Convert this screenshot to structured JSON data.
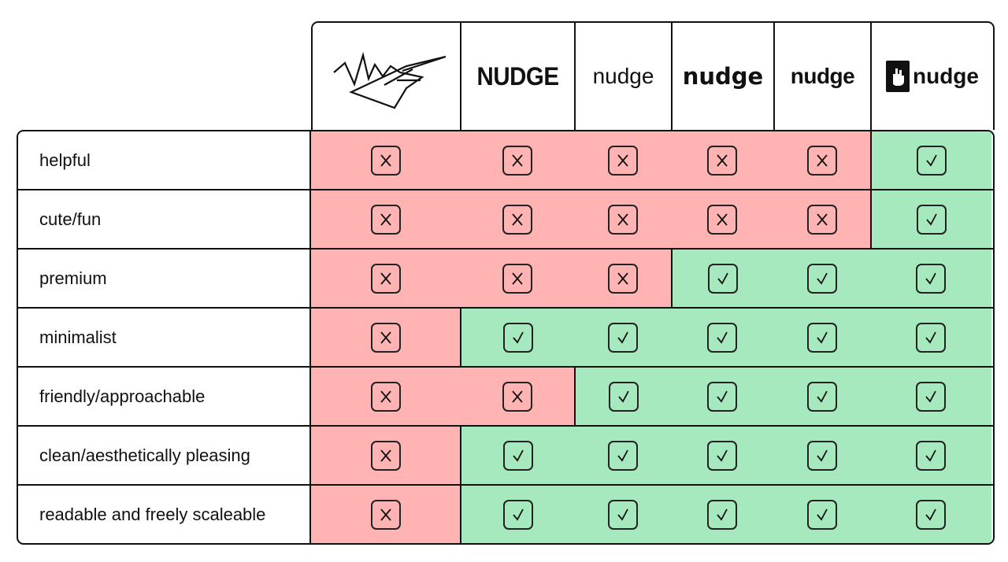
{
  "header": {
    "logos": [
      {
        "name": "sketch-logo",
        "text": ""
      },
      {
        "name": "logo-nudge-caps",
        "text": "NUDGE"
      },
      {
        "name": "logo-nudge-regular",
        "text": "nudge"
      },
      {
        "name": "logo-nudge-rounded",
        "text": "nudge"
      },
      {
        "name": "logo-nudge-heavy",
        "text": "nudge"
      },
      {
        "name": "logo-nudge-hand",
        "text": "nudge"
      }
    ]
  },
  "rows": [
    {
      "label": "helpful",
      "marks": [
        "x",
        "x",
        "x",
        "x",
        "x",
        "check"
      ]
    },
    {
      "label": "cute/fun",
      "marks": [
        "x",
        "x",
        "x",
        "x",
        "x",
        "check"
      ]
    },
    {
      "label": "premium",
      "marks": [
        "x",
        "x",
        "x",
        "check",
        "check",
        "check"
      ]
    },
    {
      "label": "minimalist",
      "marks": [
        "x",
        "check",
        "check",
        "check",
        "check",
        "check"
      ]
    },
    {
      "label": "friendly/approachable",
      "marks": [
        "x",
        "x",
        "check",
        "check",
        "check",
        "check"
      ]
    },
    {
      "label": "clean/aesthetically pleasing",
      "marks": [
        "x",
        "check",
        "check",
        "check",
        "check",
        "check"
      ]
    },
    {
      "label": "readable and freely scaleable",
      "marks": [
        "x",
        "check",
        "check",
        "check",
        "check",
        "check"
      ]
    }
  ],
  "colors": {
    "no": "#ffb3b3",
    "yes": "#a7e9bf",
    "border": "#111111"
  }
}
